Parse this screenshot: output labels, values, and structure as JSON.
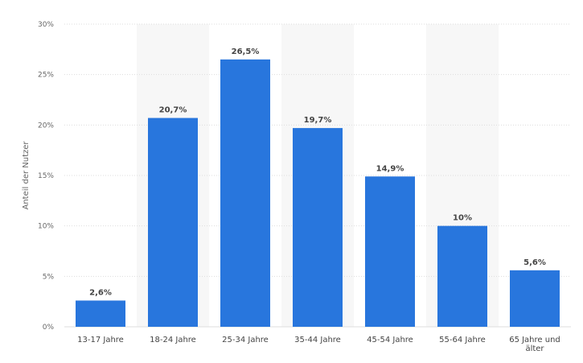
{
  "chart_data": {
    "type": "bar",
    "categories": [
      "13-17 Jahre",
      "18-24 Jahre",
      "25-34 Jahre",
      "35-44 Jahre",
      "45-54 Jahre",
      "55-64 Jahre",
      "65 Jahre und älter"
    ],
    "category_lines": [
      [
        "13-17 Jahre"
      ],
      [
        "18-24 Jahre"
      ],
      [
        "25-34 Jahre"
      ],
      [
        "35-44 Jahre"
      ],
      [
        "45-54 Jahre"
      ],
      [
        "55-64 Jahre"
      ],
      [
        "65 Jahre und",
        "älter"
      ]
    ],
    "values": [
      2.6,
      20.7,
      26.5,
      19.7,
      14.9,
      10,
      5.6
    ],
    "value_labels": [
      "2,6%",
      "20,7%",
      "26,5%",
      "19,7%",
      "14,9%",
      "10%",
      "5,6%"
    ],
    "ylabel": "Anteil der Nutzer",
    "ylim": [
      0,
      30
    ],
    "yticks": [
      0,
      5,
      10,
      15,
      20,
      25,
      30
    ],
    "ytick_labels": [
      "0%",
      "5%",
      "10%",
      "15%",
      "20%",
      "25%",
      "30%"
    ],
    "grid": true,
    "colors": {
      "bar": "#2876dd",
      "band": "#f7f7f7",
      "grid": "#dddddd",
      "text": "#444444",
      "axis_text": "#666666"
    }
  }
}
